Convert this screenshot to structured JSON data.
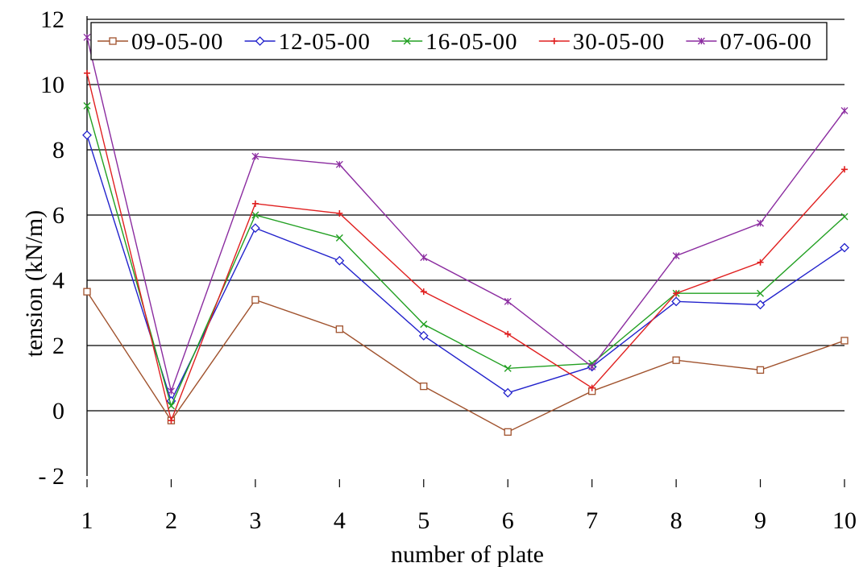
{
  "chart_data": {
    "type": "line",
    "xlabel": "number of plate",
    "ylabel": "tension (kN/m)",
    "x": [
      1,
      2,
      3,
      4,
      5,
      6,
      7,
      8,
      9,
      10
    ],
    "xlim": [
      1,
      10
    ],
    "ylim": [
      -2,
      12
    ],
    "yticks": [
      -2,
      0,
      2,
      4,
      6,
      8,
      10,
      12
    ],
    "grid": "horizontal",
    "legend_position": "top",
    "series": [
      {
        "name": "09-05-00",
        "color": "#a0522d",
        "marker": "square",
        "values": [
          3.65,
          -0.3,
          3.4,
          2.5,
          0.75,
          -0.65,
          0.6,
          1.55,
          1.25,
          2.15
        ]
      },
      {
        "name": "12-05-00",
        "color": "#2222cc",
        "marker": "diamond",
        "values": [
          8.45,
          0.3,
          5.6,
          4.6,
          2.3,
          0.55,
          1.35,
          3.35,
          3.25,
          5.0
        ]
      },
      {
        "name": "16-05-00",
        "color": "#22a022",
        "marker": "x",
        "values": [
          9.35,
          0.15,
          6.0,
          5.3,
          2.65,
          1.3,
          1.45,
          3.6,
          3.6,
          5.95
        ]
      },
      {
        "name": "30-05-00",
        "color": "#e02020",
        "marker": "plus",
        "values": [
          10.35,
          -0.3,
          6.35,
          6.05,
          3.65,
          2.35,
          0.7,
          3.6,
          4.55,
          7.4
        ]
      },
      {
        "name": "07-06-00",
        "color": "#8b2ca0",
        "marker": "star",
        "values": [
          11.45,
          0.6,
          7.8,
          7.55,
          4.7,
          3.35,
          1.35,
          4.75,
          5.75,
          9.2
        ]
      }
    ]
  }
}
